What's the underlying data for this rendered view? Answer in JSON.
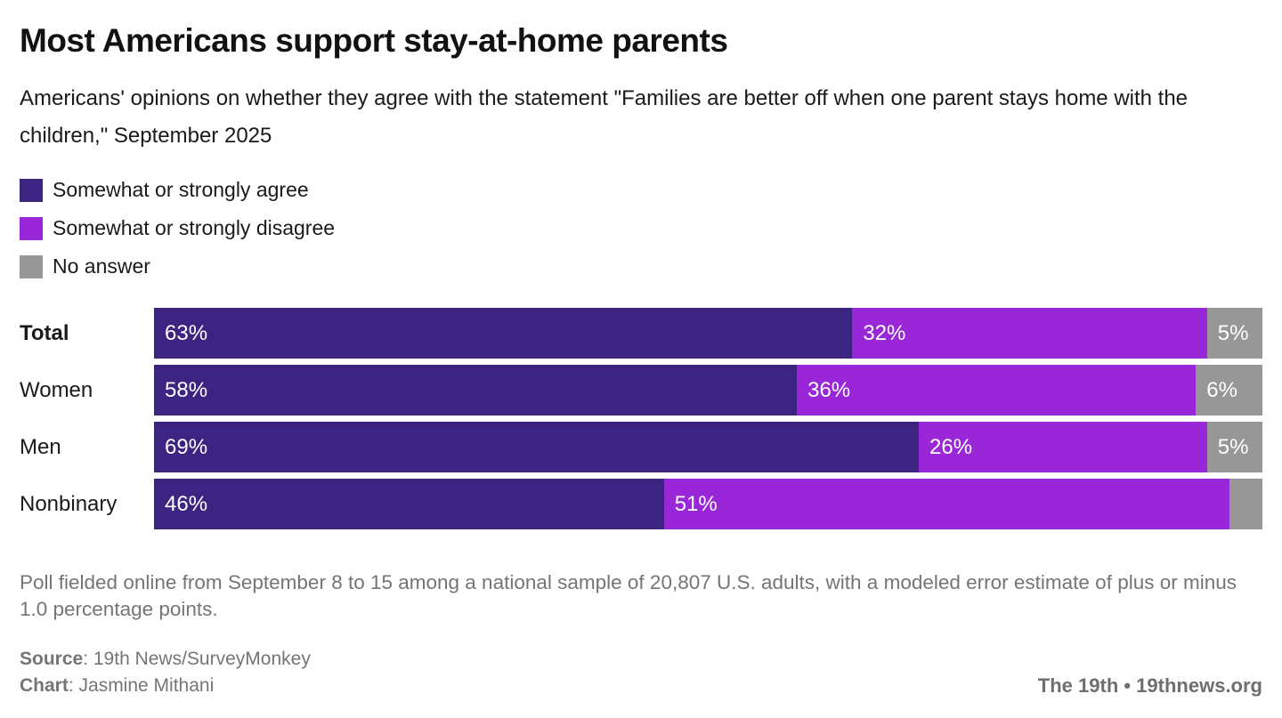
{
  "header": {
    "title": "Most Americans support stay-at-home parents",
    "subtitle": "Americans' opinions on whether they agree with the statement \"Families are better off when one parent stays home with the children,\" September 2025"
  },
  "colors": {
    "agree": "#3C2483",
    "disagree": "#9927D7",
    "no_answer": "#979797"
  },
  "legend": [
    {
      "label": "Somewhat or strongly agree",
      "color": "#3C2483"
    },
    {
      "label": "Somewhat or strongly disagree",
      "color": "#9927D7"
    },
    {
      "label": "No answer",
      "color": "#979797"
    }
  ],
  "chart_data": {
    "type": "bar",
    "orientation": "horizontal",
    "stacked": true,
    "unit": "percent",
    "axis_range": [
      0,
      100
    ],
    "grid": false,
    "legend_position": "top-left",
    "categories": [
      "Total",
      "Women",
      "Men",
      "Nonbinary"
    ],
    "series": [
      {
        "name": "Somewhat or strongly agree",
        "color": "#3C2483",
        "values": [
          63,
          58,
          69,
          46
        ],
        "display": [
          "63%",
          "58%",
          "69%",
          "46%"
        ]
      },
      {
        "name": "Somewhat or strongly disagree",
        "color": "#9927D7",
        "values": [
          32,
          36,
          26,
          51
        ],
        "display": [
          "32%",
          "36%",
          "26%",
          "51%"
        ]
      },
      {
        "name": "No answer",
        "color": "#979797",
        "values": [
          5,
          6,
          5,
          3
        ],
        "display": [
          "5%",
          "6%",
          "5%",
          ""
        ]
      }
    ]
  },
  "footer": {
    "note": "Poll fielded online from September 8 to 15 among a national sample of 20,807 U.S. adults, with a modeled error estimate of plus or minus 1.0 percentage points.",
    "source_label": "Source",
    "source_rest": ": 19th News/SurveyMonkey",
    "chart_label": "Chart",
    "chart_rest": ": Jasmine Mithani",
    "org_credit": "The 19th • 19thnews.org"
  }
}
